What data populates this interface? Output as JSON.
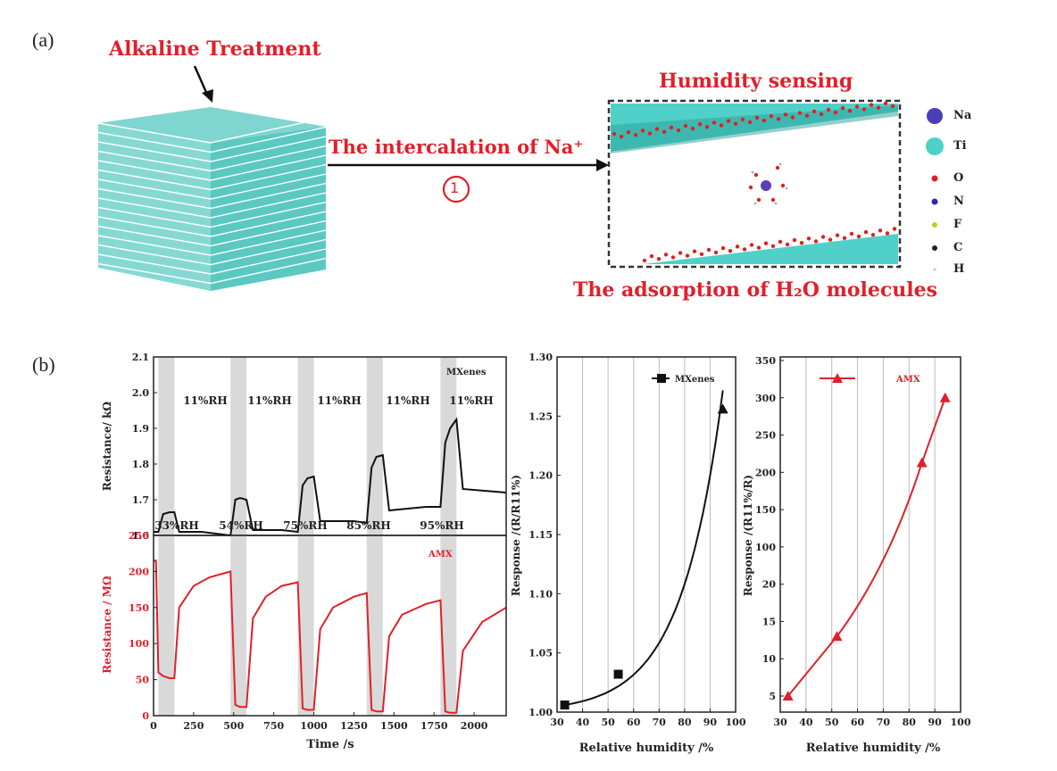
{
  "panel_a": {
    "label": "(a)",
    "alkaline_label": "Alkaline Treatment",
    "arrow_label": "The intercalation of Na⁺",
    "step_number": "1",
    "humidity_label": "Humidity sensing",
    "adsorption_label": "The adsorption of H₂O molecules",
    "legend": [
      {
        "symbol": "Na",
        "color": "#4a3fb8"
      },
      {
        "symbol": "Ti",
        "color": "#4fd1c9"
      },
      {
        "symbol": "O",
        "color": "#e02020"
      },
      {
        "symbol": "N",
        "color": "#2a2ab0"
      },
      {
        "symbol": "F",
        "color": "#b8d020"
      },
      {
        "symbol": "C",
        "color": "#202020"
      },
      {
        "symbol": "H",
        "color": "#d8d8d8"
      }
    ]
  },
  "panel_b": {
    "label": "(b)"
  },
  "chart_data": [
    {
      "type": "line",
      "name": "resistance-time-mxenes",
      "series_label": "MXenes",
      "ylabel": "Resistance/ kΩ",
      "ylim": [
        1.6,
        2.1
      ],
      "yticks": [
        "1.6",
        "1.7",
        "1.8",
        "1.9",
        "2.0",
        "2.1"
      ],
      "xlim": [
        0,
        2200
      ],
      "annotations_top": [
        "11%RH",
        "11%RH",
        "11%RH",
        "11%RH",
        "11%RH"
      ],
      "annotations_bottom": [
        "33%RH",
        "54%RH",
        "75%RH",
        "85%RH",
        "95%RH"
      ],
      "shaded_intervals": [
        [
          30,
          130
        ],
        [
          480,
          580
        ],
        [
          900,
          1000
        ],
        [
          1330,
          1430
        ],
        [
          1790,
          1890
        ]
      ],
      "x": [
        0,
        30,
        60,
        100,
        130,
        160,
        300,
        480,
        510,
        540,
        580,
        620,
        800,
        900,
        930,
        960,
        1000,
        1040,
        1250,
        1330,
        1360,
        1390,
        1430,
        1470,
        1700,
        1790,
        1820,
        1850,
        1890,
        1930,
        2200
      ],
      "y": [
        1.61,
        1.61,
        1.66,
        1.665,
        1.665,
        1.61,
        1.61,
        1.6,
        1.7,
        1.705,
        1.7,
        1.615,
        1.615,
        1.61,
        1.74,
        1.76,
        1.765,
        1.64,
        1.64,
        1.635,
        1.79,
        1.82,
        1.825,
        1.67,
        1.68,
        1.68,
        1.86,
        1.9,
        1.925,
        1.73,
        1.72
      ]
    },
    {
      "type": "line",
      "name": "resistance-time-amx",
      "series_label": "AMX",
      "xlabel": "Time /s",
      "ylabel": "Resistance / MΩ",
      "ylim": [
        0,
        250
      ],
      "yticks": [
        "0",
        "50",
        "100",
        "150",
        "200",
        "250"
      ],
      "xlim": [
        0,
        2200
      ],
      "xticks": [
        "0",
        "250",
        "500",
        "750",
        "1000",
        "1250",
        "1500",
        "1750",
        "2000"
      ],
      "shaded_intervals": [
        [
          30,
          130
        ],
        [
          480,
          580
        ],
        [
          900,
          1000
        ],
        [
          1330,
          1430
        ],
        [
          1790,
          1890
        ]
      ],
      "x": [
        0,
        15,
        30,
        60,
        100,
        130,
        160,
        250,
        350,
        480,
        510,
        540,
        580,
        620,
        700,
        800,
        900,
        930,
        960,
        1000,
        1040,
        1120,
        1250,
        1330,
        1360,
        1390,
        1430,
        1470,
        1550,
        1700,
        1790,
        1820,
        1850,
        1890,
        1930,
        2050,
        2200
      ],
      "y": [
        215,
        215,
        60,
        55,
        52,
        52,
        150,
        180,
        192,
        200,
        15,
        12,
        12,
        135,
        165,
        180,
        185,
        10,
        8,
        8,
        120,
        150,
        165,
        170,
        8,
        6,
        6,
        110,
        140,
        155,
        160,
        6,
        4,
        4,
        90,
        130,
        150
      ]
    },
    {
      "type": "line",
      "name": "response-mxenes",
      "series_label": "MXenes",
      "xlabel": "Relative humidity /%",
      "ylabel": "Response /(R/R11%)",
      "xlim": [
        30,
        100
      ],
      "ylim": [
        1.0,
        1.3
      ],
      "xticks": [
        "30",
        "40",
        "50",
        "60",
        "70",
        "80",
        "90",
        "100"
      ],
      "yticks": [
        "1.00",
        "1.05",
        "1.10",
        "1.15",
        "1.20",
        "1.25",
        "1.30"
      ],
      "x": [
        33,
        54,
        95
      ],
      "y": [
        1.006,
        1.032,
        1.256
      ]
    },
    {
      "type": "line",
      "name": "response-amx",
      "series_label": "AMX",
      "xlabel": "Relative humidity /%",
      "ylabel": "Response /(R11%/R)",
      "xlim": [
        30,
        100
      ],
      "xticks": [
        "30",
        "40",
        "50",
        "60",
        "70",
        "80",
        "90",
        "100"
      ],
      "yticks": [
        "5",
        "10",
        "15",
        "20",
        "100",
        "150",
        "200",
        "250",
        "300",
        "350"
      ],
      "x": [
        33,
        52,
        85,
        94
      ],
      "y": [
        5,
        13,
        213,
        300
      ]
    }
  ]
}
